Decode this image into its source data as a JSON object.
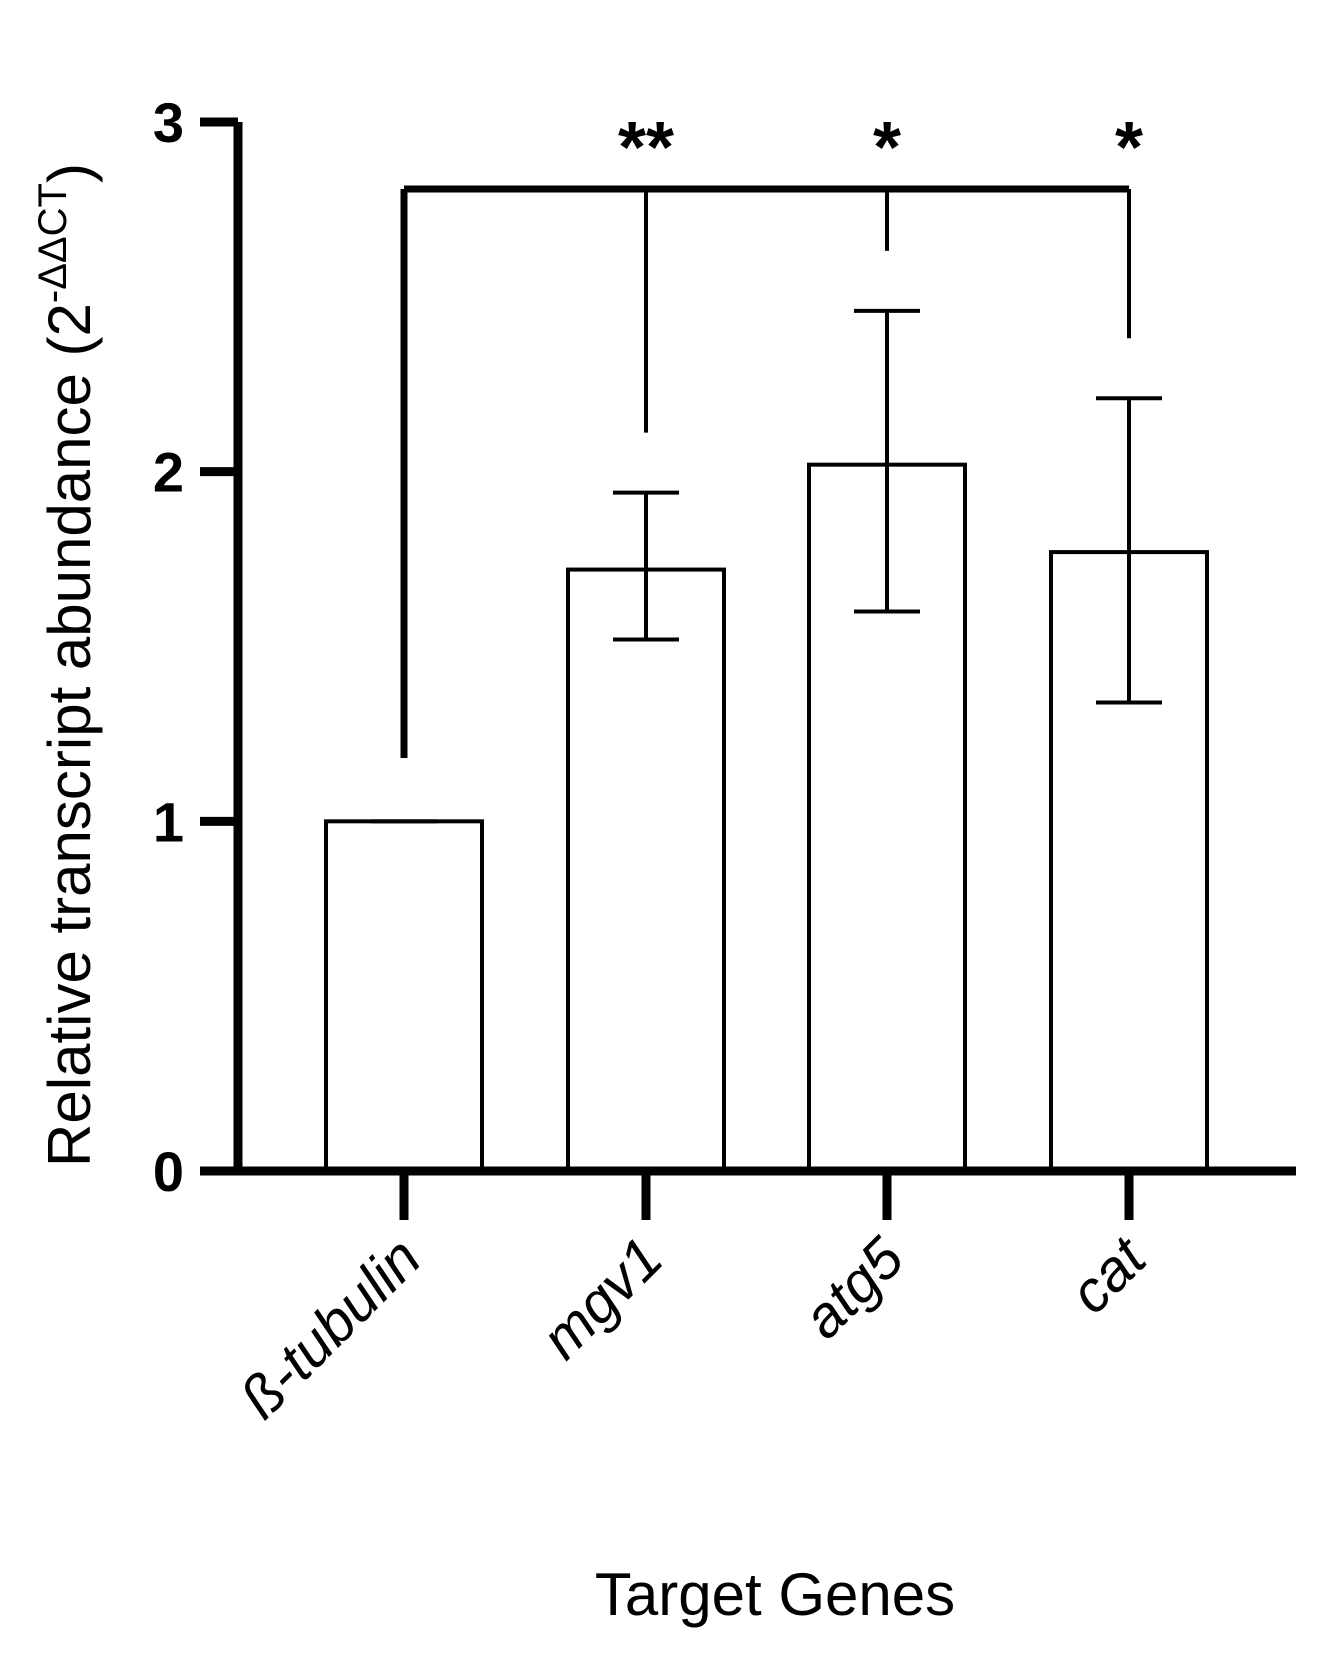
{
  "chart_data": {
    "type": "bar",
    "xlabel": "Target Genes",
    "ylabel": "Relative transcript abundance (2",
    "ylabel_superscript": "-ΔΔCT",
    "ylabel_close": ")",
    "ylim": [
      0,
      3
    ],
    "yticks": [
      {
        "value": 0,
        "label": "0"
      },
      {
        "value": 1,
        "label": "1"
      },
      {
        "value": 2,
        "label": "2"
      },
      {
        "value": 3,
        "label": "3"
      }
    ],
    "categories": [
      "ß-tubulin",
      "mgv1",
      "atg5",
      "cat"
    ],
    "values": [
      1.0,
      1.72,
      2.02,
      1.77
    ],
    "error_low": [
      1.0,
      1.52,
      1.6,
      1.34
    ],
    "error_high": [
      1.0,
      1.94,
      2.46,
      2.21
    ],
    "significance": {
      "reference": "ß-tubulin",
      "marks": [
        {
          "category": "mgv1",
          "label": "**"
        },
        {
          "category": "atg5",
          "label": "*"
        },
        {
          "category": "cat",
          "label": "*"
        }
      ]
    },
    "grid": false,
    "legend": "none",
    "bar_fill": "#ffffff",
    "bar_stroke": "#000000"
  }
}
